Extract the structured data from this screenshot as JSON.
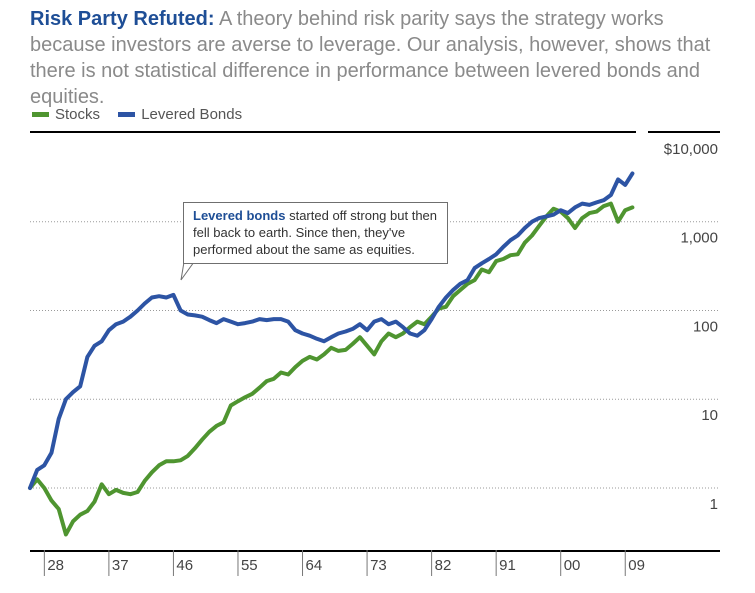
{
  "header": {
    "title_lead": "Risk Party Refuted:",
    "title_text": "A theory behind risk parity says the strategy works because investors are averse to leverage. Our analysis, however, shows that there is not statistical difference in performance between levered bonds and equities."
  },
  "callout": {
    "lead": "Levered bonds",
    "text": "started off strong but then fell back to earth. Since then, they've performed about the same as equities."
  },
  "colors": {
    "stocks": "#4f9530",
    "levered_bonds": "#2d54a4"
  },
  "chart_data": {
    "type": "line",
    "title": "Risk Party Refuted",
    "xlabel": "",
    "ylabel": "",
    "y_scale": "log",
    "ylim": [
      0.2,
      10000
    ],
    "xlim": [
      1926,
      2010.5
    ],
    "y_ticks": [
      {
        "value": 10000,
        "label": "$10,000"
      },
      {
        "value": 1000,
        "label": "1,000"
      },
      {
        "value": 100,
        "label": "100"
      },
      {
        "value": 10,
        "label": "10"
      },
      {
        "value": 1,
        "label": "1"
      }
    ],
    "x_ticks": [
      {
        "value": 1928,
        "label": "28"
      },
      {
        "value": 1937,
        "label": "37"
      },
      {
        "value": 1946,
        "label": "46"
      },
      {
        "value": 1955,
        "label": "55"
      },
      {
        "value": 1964,
        "label": "64"
      },
      {
        "value": 1973,
        "label": "73"
      },
      {
        "value": 1982,
        "label": "82"
      },
      {
        "value": 1991,
        "label": "91"
      },
      {
        "value": 2000,
        "label": "00"
      },
      {
        "value": 2009,
        "label": "09"
      }
    ],
    "legend": [
      "Stocks",
      "Levered Bonds"
    ],
    "series": [
      {
        "name": "Stocks",
        "x": [
          1926,
          1927,
          1928,
          1929,
          1930,
          1931,
          1932,
          1933,
          1934,
          1935,
          1936,
          1937,
          1938,
          1939,
          1940,
          1941,
          1942,
          1943,
          1944,
          1945,
          1946,
          1947,
          1948,
          1949,
          1950,
          1951,
          1952,
          1953,
          1954,
          1955,
          1956,
          1957,
          1958,
          1959,
          1960,
          1961,
          1962,
          1963,
          1964,
          1965,
          1966,
          1967,
          1968,
          1969,
          1970,
          1971,
          1972,
          1973,
          1974,
          1975,
          1976,
          1977,
          1978,
          1979,
          1980,
          1981,
          1982,
          1983,
          1984,
          1985,
          1986,
          1987,
          1988,
          1989,
          1990,
          1991,
          1992,
          1993,
          1994,
          1995,
          1996,
          1997,
          1998,
          1999,
          2000,
          2001,
          2002,
          2003,
          2004,
          2005,
          2006,
          2007,
          2008,
          2009,
          2010
        ],
        "values": [
          1.0,
          1.25,
          1.0,
          0.72,
          0.58,
          0.3,
          0.42,
          0.5,
          0.55,
          0.7,
          1.1,
          0.85,
          0.95,
          0.88,
          0.85,
          0.9,
          1.2,
          1.5,
          1.8,
          2.0,
          2.0,
          2.05,
          2.3,
          2.8,
          3.5,
          4.3,
          5.0,
          5.5,
          8.5,
          9.5,
          10.5,
          11.5,
          13.5,
          16,
          17,
          20,
          19,
          23,
          27,
          30,
          28,
          32,
          38,
          35,
          36,
          42,
          50,
          40,
          32,
          45,
          55,
          50,
          55,
          65,
          75,
          70,
          85,
          105,
          110,
          145,
          170,
          200,
          220,
          290,
          270,
          360,
          380,
          420,
          430,
          580,
          700,
          900,
          1150,
          1400,
          1300,
          1100,
          850,
          1100,
          1250,
          1300,
          1500,
          1600,
          1000,
          1350,
          1450
        ]
      },
      {
        "name": "Levered Bonds",
        "x": [
          1926,
          1927,
          1928,
          1929,
          1930,
          1931,
          1932,
          1933,
          1934,
          1935,
          1936,
          1937,
          1938,
          1939,
          1940,
          1941,
          1942,
          1943,
          1944,
          1945,
          1946,
          1947,
          1948,
          1949,
          1950,
          1951,
          1952,
          1953,
          1954,
          1955,
          1956,
          1957,
          1958,
          1959,
          1960,
          1961,
          1962,
          1963,
          1964,
          1965,
          1966,
          1967,
          1968,
          1969,
          1970,
          1971,
          1972,
          1973,
          1974,
          1975,
          1976,
          1977,
          1978,
          1979,
          1980,
          1981,
          1982,
          1983,
          1984,
          1985,
          1986,
          1987,
          1988,
          1989,
          1990,
          1991,
          1992,
          1993,
          1994,
          1995,
          1996,
          1997,
          1998,
          1999,
          2000,
          2001,
          2002,
          2003,
          2004,
          2005,
          2006,
          2007,
          2008,
          2009,
          2010
        ],
        "values": [
          1.0,
          1.6,
          1.8,
          2.5,
          6,
          10,
          12,
          14,
          30,
          40,
          45,
          60,
          70,
          75,
          85,
          100,
          120,
          140,
          145,
          140,
          150,
          100,
          90,
          88,
          85,
          78,
          72,
          80,
          75,
          70,
          72,
          75,
          80,
          78,
          80,
          80,
          75,
          60,
          55,
          52,
          48,
          45,
          50,
          55,
          58,
          62,
          70,
          60,
          75,
          80,
          70,
          75,
          65,
          55,
          52,
          60,
          80,
          110,
          140,
          170,
          200,
          220,
          300,
          340,
          380,
          430,
          520,
          620,
          700,
          850,
          1000,
          1100,
          1150,
          1200,
          1350,
          1250,
          1450,
          1600,
          1550,
          1650,
          1750,
          2000,
          3000,
          2600,
          3500
        ]
      }
    ]
  }
}
